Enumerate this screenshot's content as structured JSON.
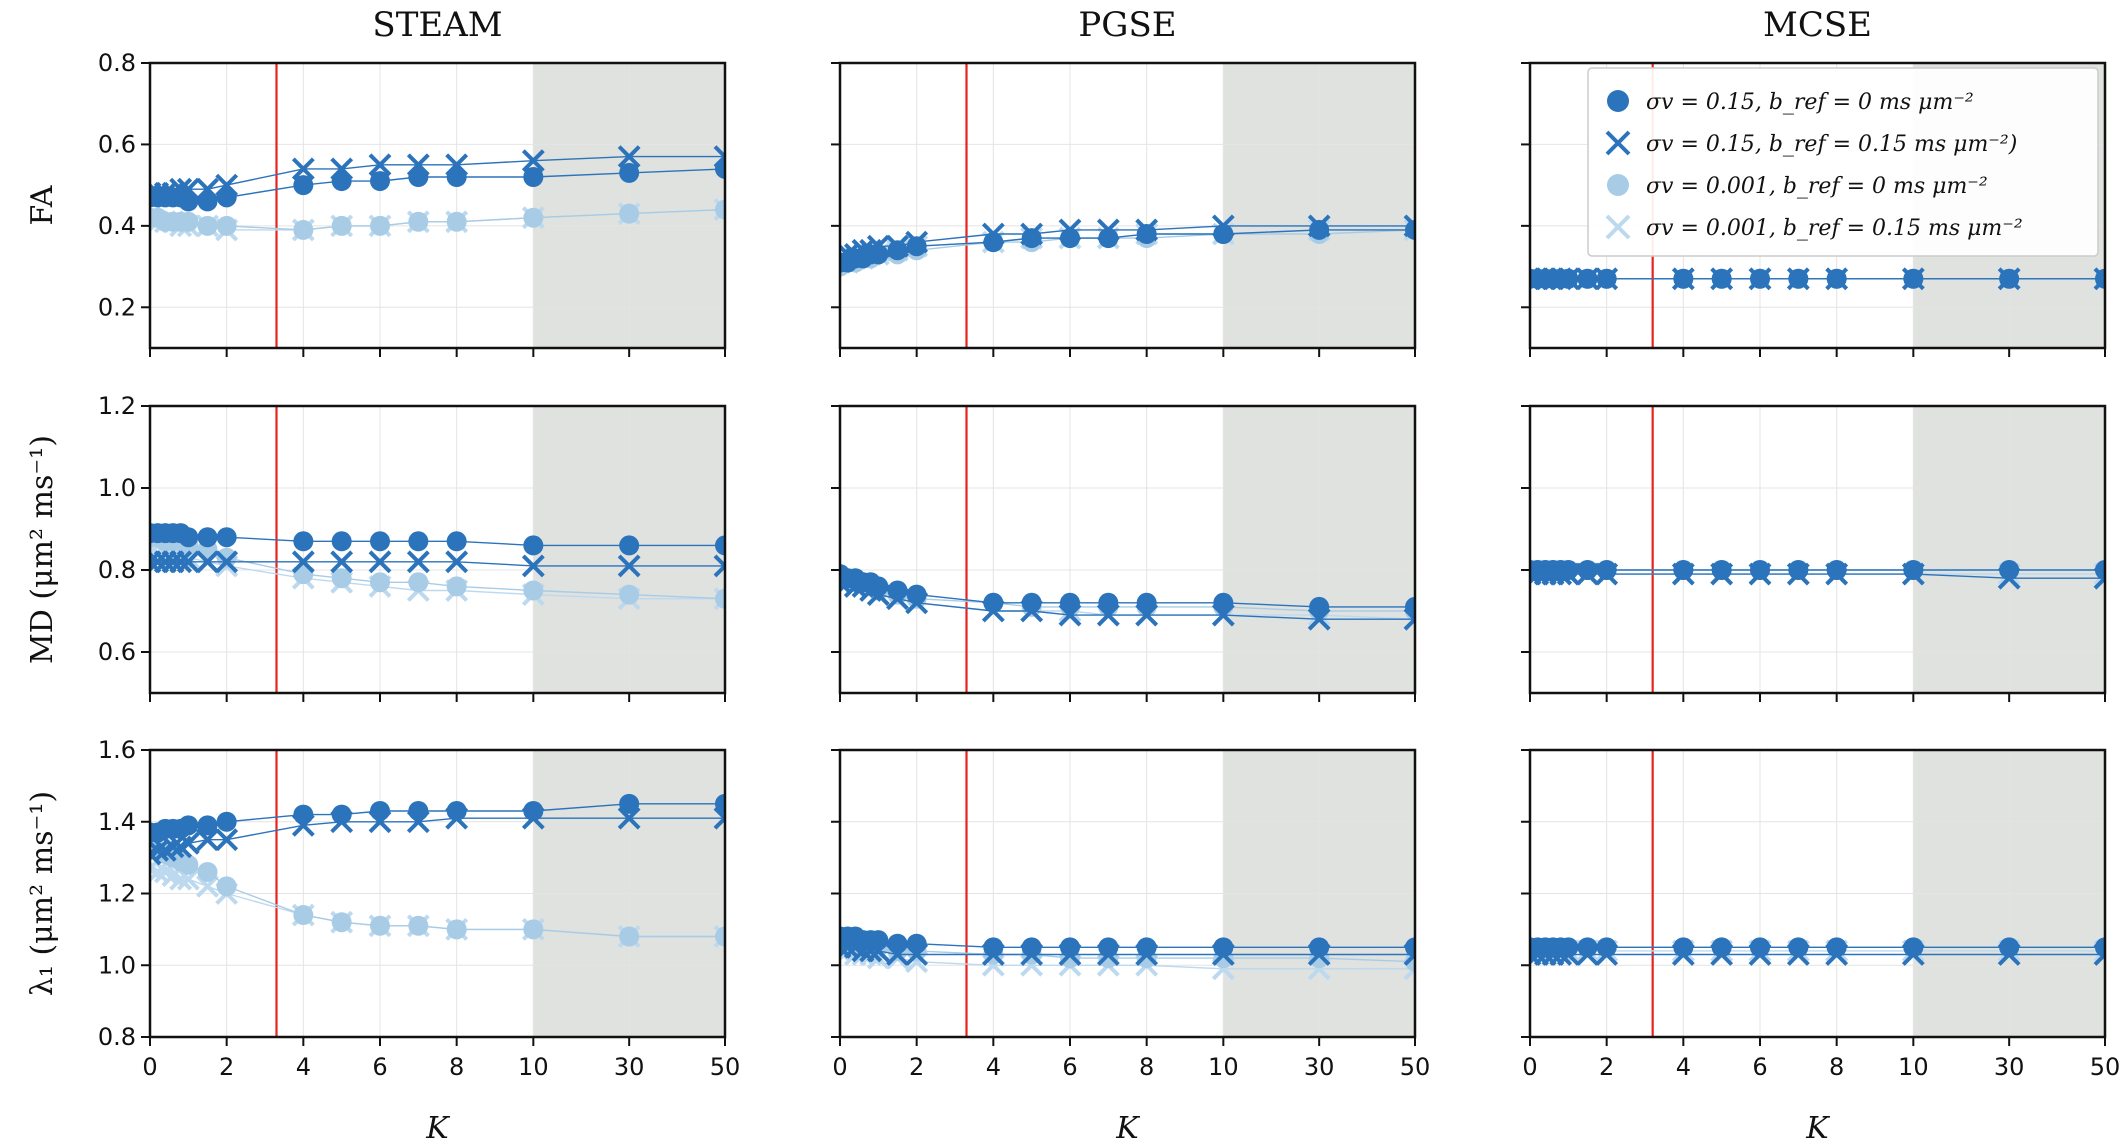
{
  "chart_data": {
    "type": "line",
    "columns": [
      "STEAM",
      "PGSE",
      "MCSE"
    ],
    "rows": [
      {
        "ylabel": "FA",
        "ylim": [
          0.1,
          0.8
        ],
        "yticks": [
          "0.2",
          "0.4",
          "0.6",
          "0.8"
        ]
      },
      {
        "ylabel": "MD (μm² ms⁻¹)",
        "ylim": [
          0.5,
          1.2
        ],
        "yticks": [
          "0.6",
          "0.8",
          "1.0",
          "1.2"
        ]
      },
      {
        "ylabel": "λ₁ (μm² ms⁻¹)",
        "ylim": [
          0.8,
          1.6
        ],
        "yticks": [
          "0.8",
          "1.0",
          "1.2",
          "1.4",
          "1.6"
        ]
      }
    ],
    "xlabel": "K",
    "x": [
      0,
      0.2,
      0.4,
      0.6,
      0.8,
      1,
      1.5,
      2,
      4,
      5,
      6,
      7,
      8,
      10,
      30,
      50
    ],
    "xticks": [
      "0",
      "2",
      "4",
      "6",
      "8",
      "10",
      "30",
      "50"
    ],
    "vline_x": 3.3,
    "vline_color": "#e8221c",
    "shaded_region": [
      10,
      50
    ],
    "shade_color": "#dfe2de",
    "grid": true,
    "legend_position": "top-right of MCSE / FA panel",
    "series_styles": [
      {
        "name": "σv = 0.15, b_ref = 0 ms μm⁻²",
        "marker": "circle",
        "color": "#2b73bb"
      },
      {
        "name": "σv = 0.15, b_ref = 0.15 ms μm⁻²)",
        "marker": "x",
        "color": "#2b73bb"
      },
      {
        "name": "σv = 0.001, b_ref = 0 ms μm⁻²",
        "marker": "circle",
        "color": "#a8cce6"
      },
      {
        "name": "σv = 0.001, b_ref = 0.15 ms μm⁻²",
        "marker": "x",
        "color": "#bcd9ef"
      }
    ],
    "panels": [
      {
        "row": 0,
        "col": 0,
        "series": [
          [
            0.47,
            0.47,
            0.47,
            0.47,
            0.47,
            0.46,
            0.46,
            0.47,
            0.5,
            0.51,
            0.51,
            0.52,
            0.52,
            0.52,
            0.53,
            0.54
          ],
          [
            0.48,
            0.48,
            0.48,
            0.48,
            0.49,
            0.49,
            0.49,
            0.5,
            0.54,
            0.54,
            0.55,
            0.55,
            0.55,
            0.56,
            0.57,
            0.57
          ],
          [
            0.42,
            0.42,
            0.41,
            0.41,
            0.41,
            0.41,
            0.4,
            0.4,
            0.39,
            0.4,
            0.4,
            0.41,
            0.41,
            0.42,
            0.43,
            0.44
          ],
          [
            0.42,
            0.41,
            0.41,
            0.41,
            0.4,
            0.4,
            0.4,
            0.39,
            0.39,
            0.4,
            0.4,
            0.41,
            0.41,
            0.42,
            0.43,
            0.44
          ]
        ]
      },
      {
        "row": 0,
        "col": 1,
        "series": [
          [
            0.31,
            0.31,
            0.32,
            0.32,
            0.33,
            0.33,
            0.34,
            0.35,
            0.36,
            0.37,
            0.37,
            0.37,
            0.38,
            0.38,
            0.39,
            0.39
          ],
          [
            0.32,
            0.33,
            0.33,
            0.34,
            0.34,
            0.35,
            0.35,
            0.36,
            0.38,
            0.38,
            0.39,
            0.39,
            0.39,
            0.4,
            0.4,
            0.4
          ],
          [
            0.3,
            0.31,
            0.31,
            0.32,
            0.32,
            0.33,
            0.33,
            0.34,
            0.36,
            0.36,
            0.37,
            0.37,
            0.37,
            0.38,
            0.38,
            0.39
          ],
          [
            0.31,
            0.31,
            0.32,
            0.32,
            0.33,
            0.33,
            0.34,
            0.35,
            0.36,
            0.37,
            0.37,
            0.37,
            0.38,
            0.38,
            0.39,
            0.39
          ]
        ]
      },
      {
        "row": 0,
        "col": 2,
        "series": [
          [
            0.27,
            0.27,
            0.27,
            0.27,
            0.27,
            0.27,
            0.27,
            0.27,
            0.27,
            0.27,
            0.27,
            0.27,
            0.27,
            0.27,
            0.27,
            0.27
          ],
          [
            0.27,
            0.27,
            0.27,
            0.27,
            0.27,
            0.27,
            0.27,
            0.27,
            0.27,
            0.27,
            0.27,
            0.27,
            0.27,
            0.27,
            0.27,
            0.27
          ],
          [
            0.27,
            0.27,
            0.27,
            0.27,
            0.27,
            0.27,
            0.27,
            0.27,
            0.27,
            0.27,
            0.27,
            0.27,
            0.27,
            0.27,
            0.27,
            0.27
          ],
          [
            0.27,
            0.27,
            0.27,
            0.27,
            0.27,
            0.27,
            0.27,
            0.27,
            0.27,
            0.27,
            0.27,
            0.27,
            0.27,
            0.27,
            0.27,
            0.27
          ]
        ]
      },
      {
        "row": 1,
        "col": 0,
        "series": [
          [
            0.89,
            0.89,
            0.89,
            0.89,
            0.89,
            0.88,
            0.88,
            0.88,
            0.87,
            0.87,
            0.87,
            0.87,
            0.87,
            0.86,
            0.86,
            0.86
          ],
          [
            0.82,
            0.82,
            0.82,
            0.82,
            0.82,
            0.82,
            0.82,
            0.82,
            0.82,
            0.82,
            0.82,
            0.82,
            0.82,
            0.81,
            0.81,
            0.81
          ],
          [
            0.88,
            0.88,
            0.87,
            0.87,
            0.87,
            0.86,
            0.85,
            0.83,
            0.79,
            0.78,
            0.77,
            0.77,
            0.76,
            0.75,
            0.74,
            0.73
          ],
          [
            0.84,
            0.84,
            0.84,
            0.83,
            0.83,
            0.83,
            0.82,
            0.81,
            0.78,
            0.77,
            0.76,
            0.75,
            0.75,
            0.74,
            0.73,
            0.73
          ]
        ]
      },
      {
        "row": 1,
        "col": 1,
        "series": [
          [
            0.79,
            0.78,
            0.78,
            0.77,
            0.77,
            0.76,
            0.75,
            0.74,
            0.72,
            0.72,
            0.72,
            0.72,
            0.72,
            0.72,
            0.71,
            0.71
          ],
          [
            0.77,
            0.77,
            0.76,
            0.76,
            0.75,
            0.74,
            0.73,
            0.72,
            0.7,
            0.7,
            0.69,
            0.69,
            0.69,
            0.69,
            0.68,
            0.68
          ],
          [
            0.78,
            0.78,
            0.77,
            0.77,
            0.76,
            0.75,
            0.74,
            0.73,
            0.72,
            0.71,
            0.71,
            0.71,
            0.71,
            0.71,
            0.7,
            0.7
          ],
          [
            0.77,
            0.77,
            0.76,
            0.76,
            0.75,
            0.74,
            0.73,
            0.72,
            0.7,
            0.7,
            0.7,
            0.69,
            0.69,
            0.69,
            0.69,
            0.68
          ]
        ]
      },
      {
        "row": 1,
        "col": 2,
        "series": [
          [
            0.8,
            0.8,
            0.8,
            0.8,
            0.8,
            0.8,
            0.8,
            0.8,
            0.8,
            0.8,
            0.8,
            0.8,
            0.8,
            0.8,
            0.8,
            0.8
          ],
          [
            0.79,
            0.79,
            0.79,
            0.79,
            0.79,
            0.79,
            0.79,
            0.79,
            0.79,
            0.79,
            0.79,
            0.79,
            0.79,
            0.79,
            0.78,
            0.78
          ],
          [
            0.8,
            0.8,
            0.8,
            0.8,
            0.8,
            0.8,
            0.8,
            0.8,
            0.8,
            0.8,
            0.8,
            0.8,
            0.8,
            0.8,
            0.8,
            0.8
          ],
          [
            0.79,
            0.79,
            0.79,
            0.79,
            0.79,
            0.79,
            0.79,
            0.79,
            0.79,
            0.79,
            0.79,
            0.79,
            0.79,
            0.79,
            0.79,
            0.79
          ]
        ]
      },
      {
        "row": 2,
        "col": 0,
        "series": [
          [
            1.37,
            1.37,
            1.38,
            1.38,
            1.38,
            1.39,
            1.39,
            1.4,
            1.42,
            1.42,
            1.43,
            1.43,
            1.43,
            1.43,
            1.45,
            1.45
          ],
          [
            1.31,
            1.32,
            1.32,
            1.33,
            1.33,
            1.34,
            1.35,
            1.35,
            1.39,
            1.4,
            1.4,
            1.4,
            1.41,
            1.41,
            1.41,
            1.41
          ],
          [
            1.33,
            1.32,
            1.31,
            1.3,
            1.29,
            1.28,
            1.26,
            1.22,
            1.14,
            1.12,
            1.11,
            1.11,
            1.1,
            1.1,
            1.08,
            1.08
          ],
          [
            1.27,
            1.26,
            1.26,
            1.25,
            1.24,
            1.24,
            1.22,
            1.2,
            1.14,
            1.12,
            1.11,
            1.11,
            1.1,
            1.1,
            1.08,
            1.08
          ]
        ]
      },
      {
        "row": 2,
        "col": 1,
        "series": [
          [
            1.08,
            1.08,
            1.08,
            1.07,
            1.07,
            1.07,
            1.06,
            1.06,
            1.05,
            1.05,
            1.05,
            1.05,
            1.05,
            1.05,
            1.05,
            1.05
          ],
          [
            1.05,
            1.05,
            1.05,
            1.04,
            1.04,
            1.04,
            1.03,
            1.03,
            1.03,
            1.03,
            1.03,
            1.03,
            1.03,
            1.03,
            1.03,
            1.03
          ],
          [
            1.06,
            1.06,
            1.06,
            1.05,
            1.05,
            1.05,
            1.04,
            1.04,
            1.03,
            1.03,
            1.02,
            1.02,
            1.02,
            1.02,
            1.02,
            1.01
          ],
          [
            1.04,
            1.04,
            1.03,
            1.03,
            1.03,
            1.02,
            1.02,
            1.01,
            1.0,
            1.0,
            1.0,
            1.0,
            1.0,
            0.99,
            0.99,
            0.99
          ]
        ]
      },
      {
        "row": 2,
        "col": 2,
        "series": [
          [
            1.05,
            1.05,
            1.05,
            1.05,
            1.05,
            1.05,
            1.05,
            1.05,
            1.05,
            1.05,
            1.05,
            1.05,
            1.05,
            1.05,
            1.05,
            1.05
          ],
          [
            1.03,
            1.03,
            1.03,
            1.03,
            1.03,
            1.03,
            1.03,
            1.03,
            1.03,
            1.03,
            1.03,
            1.03,
            1.03,
            1.03,
            1.03,
            1.03
          ],
          [
            1.05,
            1.05,
            1.05,
            1.05,
            1.05,
            1.05,
            1.05,
            1.05,
            1.05,
            1.05,
            1.05,
            1.05,
            1.05,
            1.05,
            1.05,
            1.05
          ],
          [
            1.04,
            1.04,
            1.04,
            1.04,
            1.04,
            1.04,
            1.04,
            1.04,
            1.04,
            1.04,
            1.04,
            1.04,
            1.04,
            1.04,
            1.04,
            1.04
          ]
        ]
      }
    ]
  }
}
